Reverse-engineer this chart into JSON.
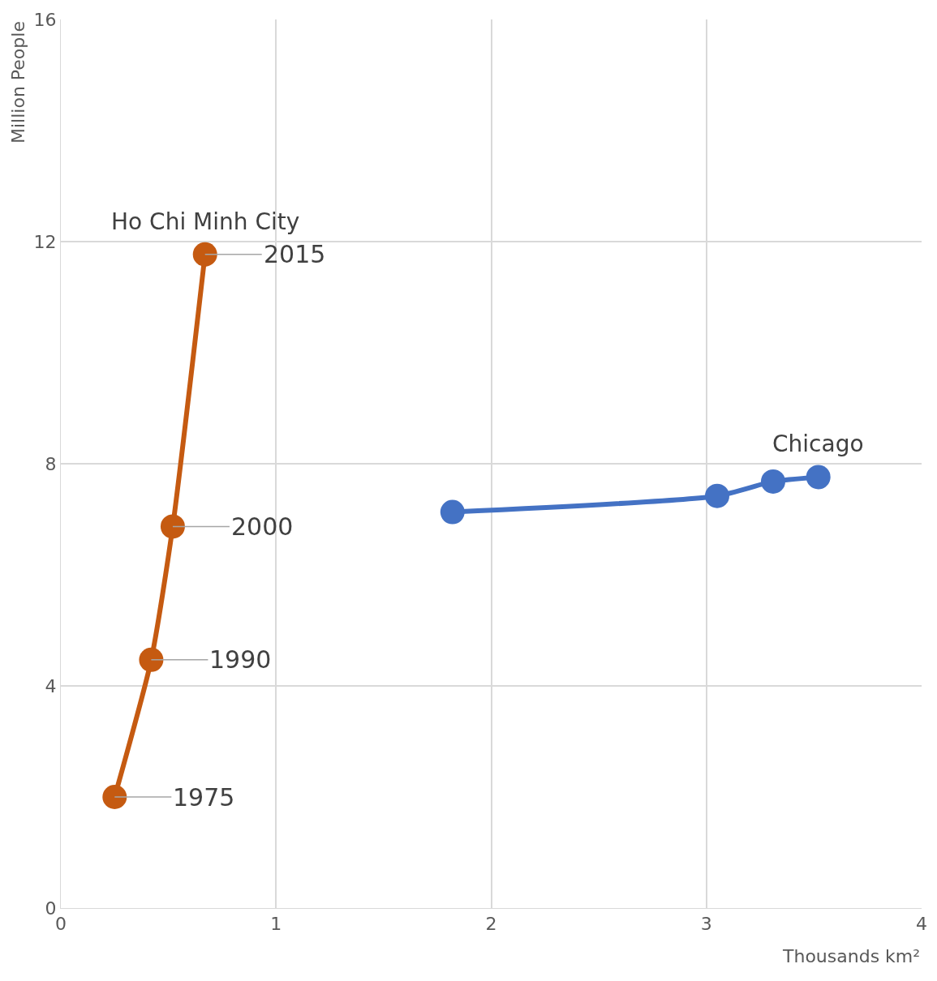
{
  "chart_data": {
    "type": "line",
    "xlabel": "Thousands km²",
    "ylabel": "Million People",
    "xlim": [
      0,
      4
    ],
    "xticks": [
      0,
      1,
      2,
      3,
      4
    ],
    "ylim": [
      0,
      16
    ],
    "yticks": [
      0,
      4,
      8,
      12,
      16
    ],
    "grid": true,
    "legend": false,
    "marker": "circle",
    "line_style": "solid",
    "series": [
      {
        "name": "Ho Chi Minh City",
        "color": "#c55a11",
        "x": [
          0.25,
          0.42,
          0.52,
          0.67
        ],
        "values": [
          2.0,
          4.47,
          6.87,
          11.77
        ]
      },
      {
        "name": "Chicago",
        "color": "#4472c4",
        "x": [
          1.82,
          3.05,
          3.31,
          3.52
        ],
        "values": [
          7.13,
          7.42,
          7.68,
          7.76
        ]
      }
    ],
    "annotations": [
      {
        "text": "1975",
        "x": 0.25,
        "y": 2.0
      },
      {
        "text": "1990",
        "x": 0.42,
        "y": 4.47
      },
      {
        "text": "2000",
        "x": 0.52,
        "y": 6.87
      },
      {
        "text": "2015",
        "x": 0.67,
        "y": 11.77
      }
    ]
  }
}
